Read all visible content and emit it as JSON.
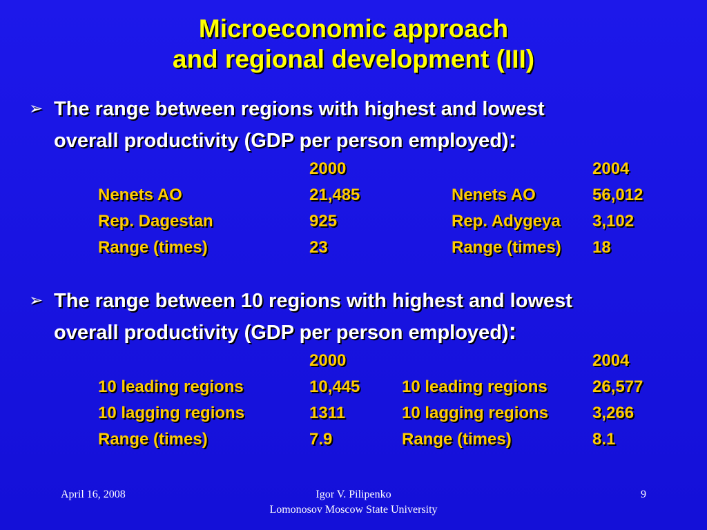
{
  "title": {
    "line1": "Microeconomic approach",
    "line2": "and regional development (III)"
  },
  "bullets": [
    {
      "arrow": "➢",
      "line1": "The range between regions with highest and lowest",
      "line2": "overall productivity (GDP per person employed)",
      "colon": ":"
    },
    {
      "arrow": "➢",
      "line1": "The range between 10 regions with highest and lowest",
      "line2": "overall productivity (GDP per person employed)",
      "colon": ":"
    }
  ],
  "tables": [
    {
      "headers": {
        "year1": "2000",
        "year2": "2004"
      },
      "rows": [
        {
          "label1": "Nenets AO",
          "value1": "21,485",
          "label2": "Nenets AO",
          "value2": "56,012"
        },
        {
          "label1": "Rep. Dagestan",
          "value1": "925",
          "label2": "Rep. Adygeya",
          "value2": "3,102"
        },
        {
          "label1": "Range (times)",
          "value1": "23",
          "label2": "Range (times)",
          "value2": "18"
        }
      ]
    },
    {
      "headers": {
        "year1": "2000",
        "year2": "2004"
      },
      "rows": [
        {
          "label1": "10 leading regions",
          "value1": "10,445",
          "label2": "10 leading regions",
          "value2": "26,577"
        },
        {
          "label1": "10 lagging regions",
          "value1": "1311",
          "label2": "10 lagging regions",
          "value2": "3,266"
        },
        {
          "label1": "Range (times)",
          "value1": "7.9",
          "label2": "Range (times)",
          "value2": "8.1"
        }
      ]
    }
  ],
  "footer": {
    "date": "April 16, 2008",
    "author": "Igor V. Pilipenko",
    "institution": "Lomonosov Moscow State University",
    "page": "9"
  }
}
